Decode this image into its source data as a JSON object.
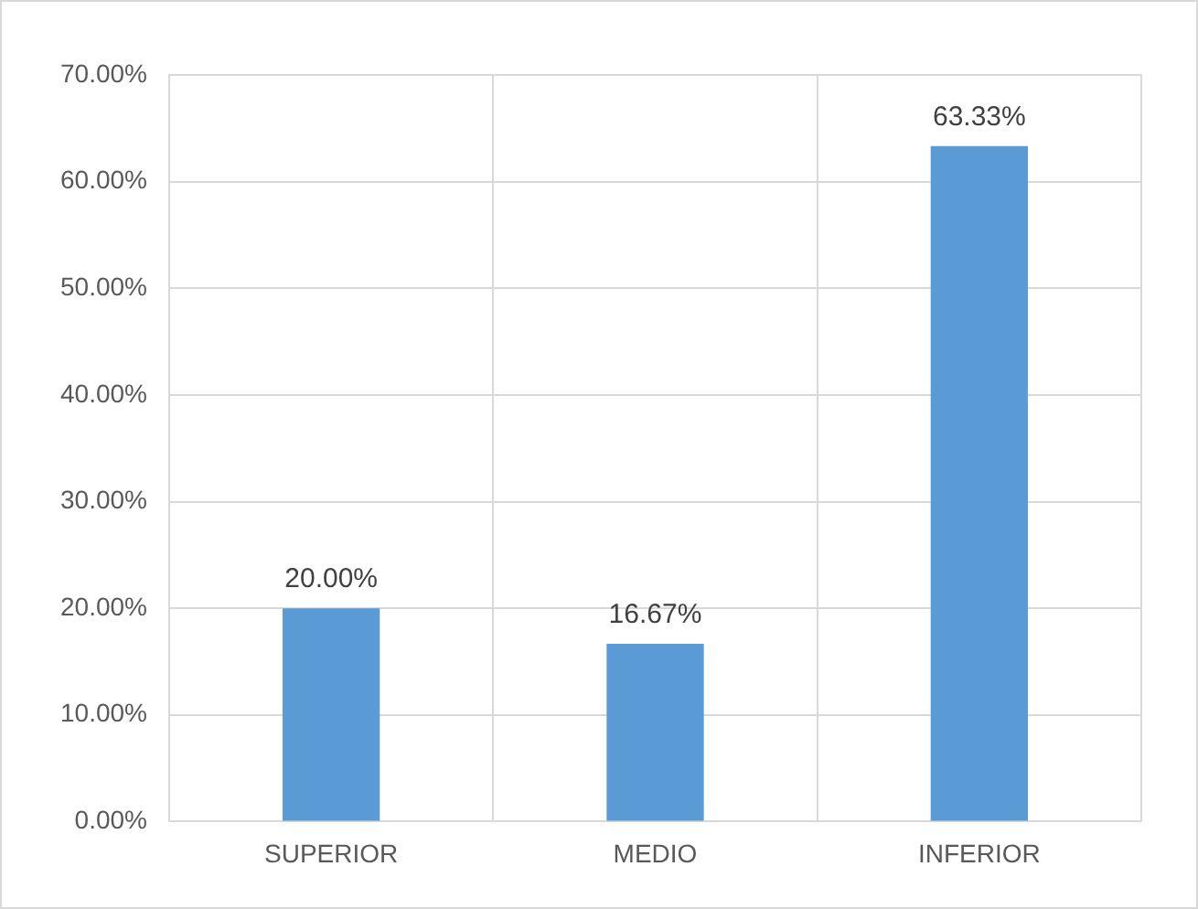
{
  "chart_data": {
    "type": "bar",
    "categories": [
      "SUPERIOR",
      "MEDIO",
      "INFERIOR"
    ],
    "values": [
      20.0,
      16.67,
      63.33
    ],
    "value_labels": [
      "20.00%",
      "16.67%",
      "63.33%"
    ],
    "color": "#5b9bd5",
    "ylim": [
      0,
      70
    ],
    "yticks": [
      {
        "value": 0,
        "label": "0.00%"
      },
      {
        "value": 10,
        "label": "10.00%"
      },
      {
        "value": 20,
        "label": "20.00%"
      },
      {
        "value": 30,
        "label": "30.00%"
      },
      {
        "value": 40,
        "label": "40.00%"
      },
      {
        "value": 50,
        "label": "50.00%"
      },
      {
        "value": 60,
        "label": "60.00%"
      },
      {
        "value": 70,
        "label": "70.00%"
      }
    ],
    "grid": true
  }
}
